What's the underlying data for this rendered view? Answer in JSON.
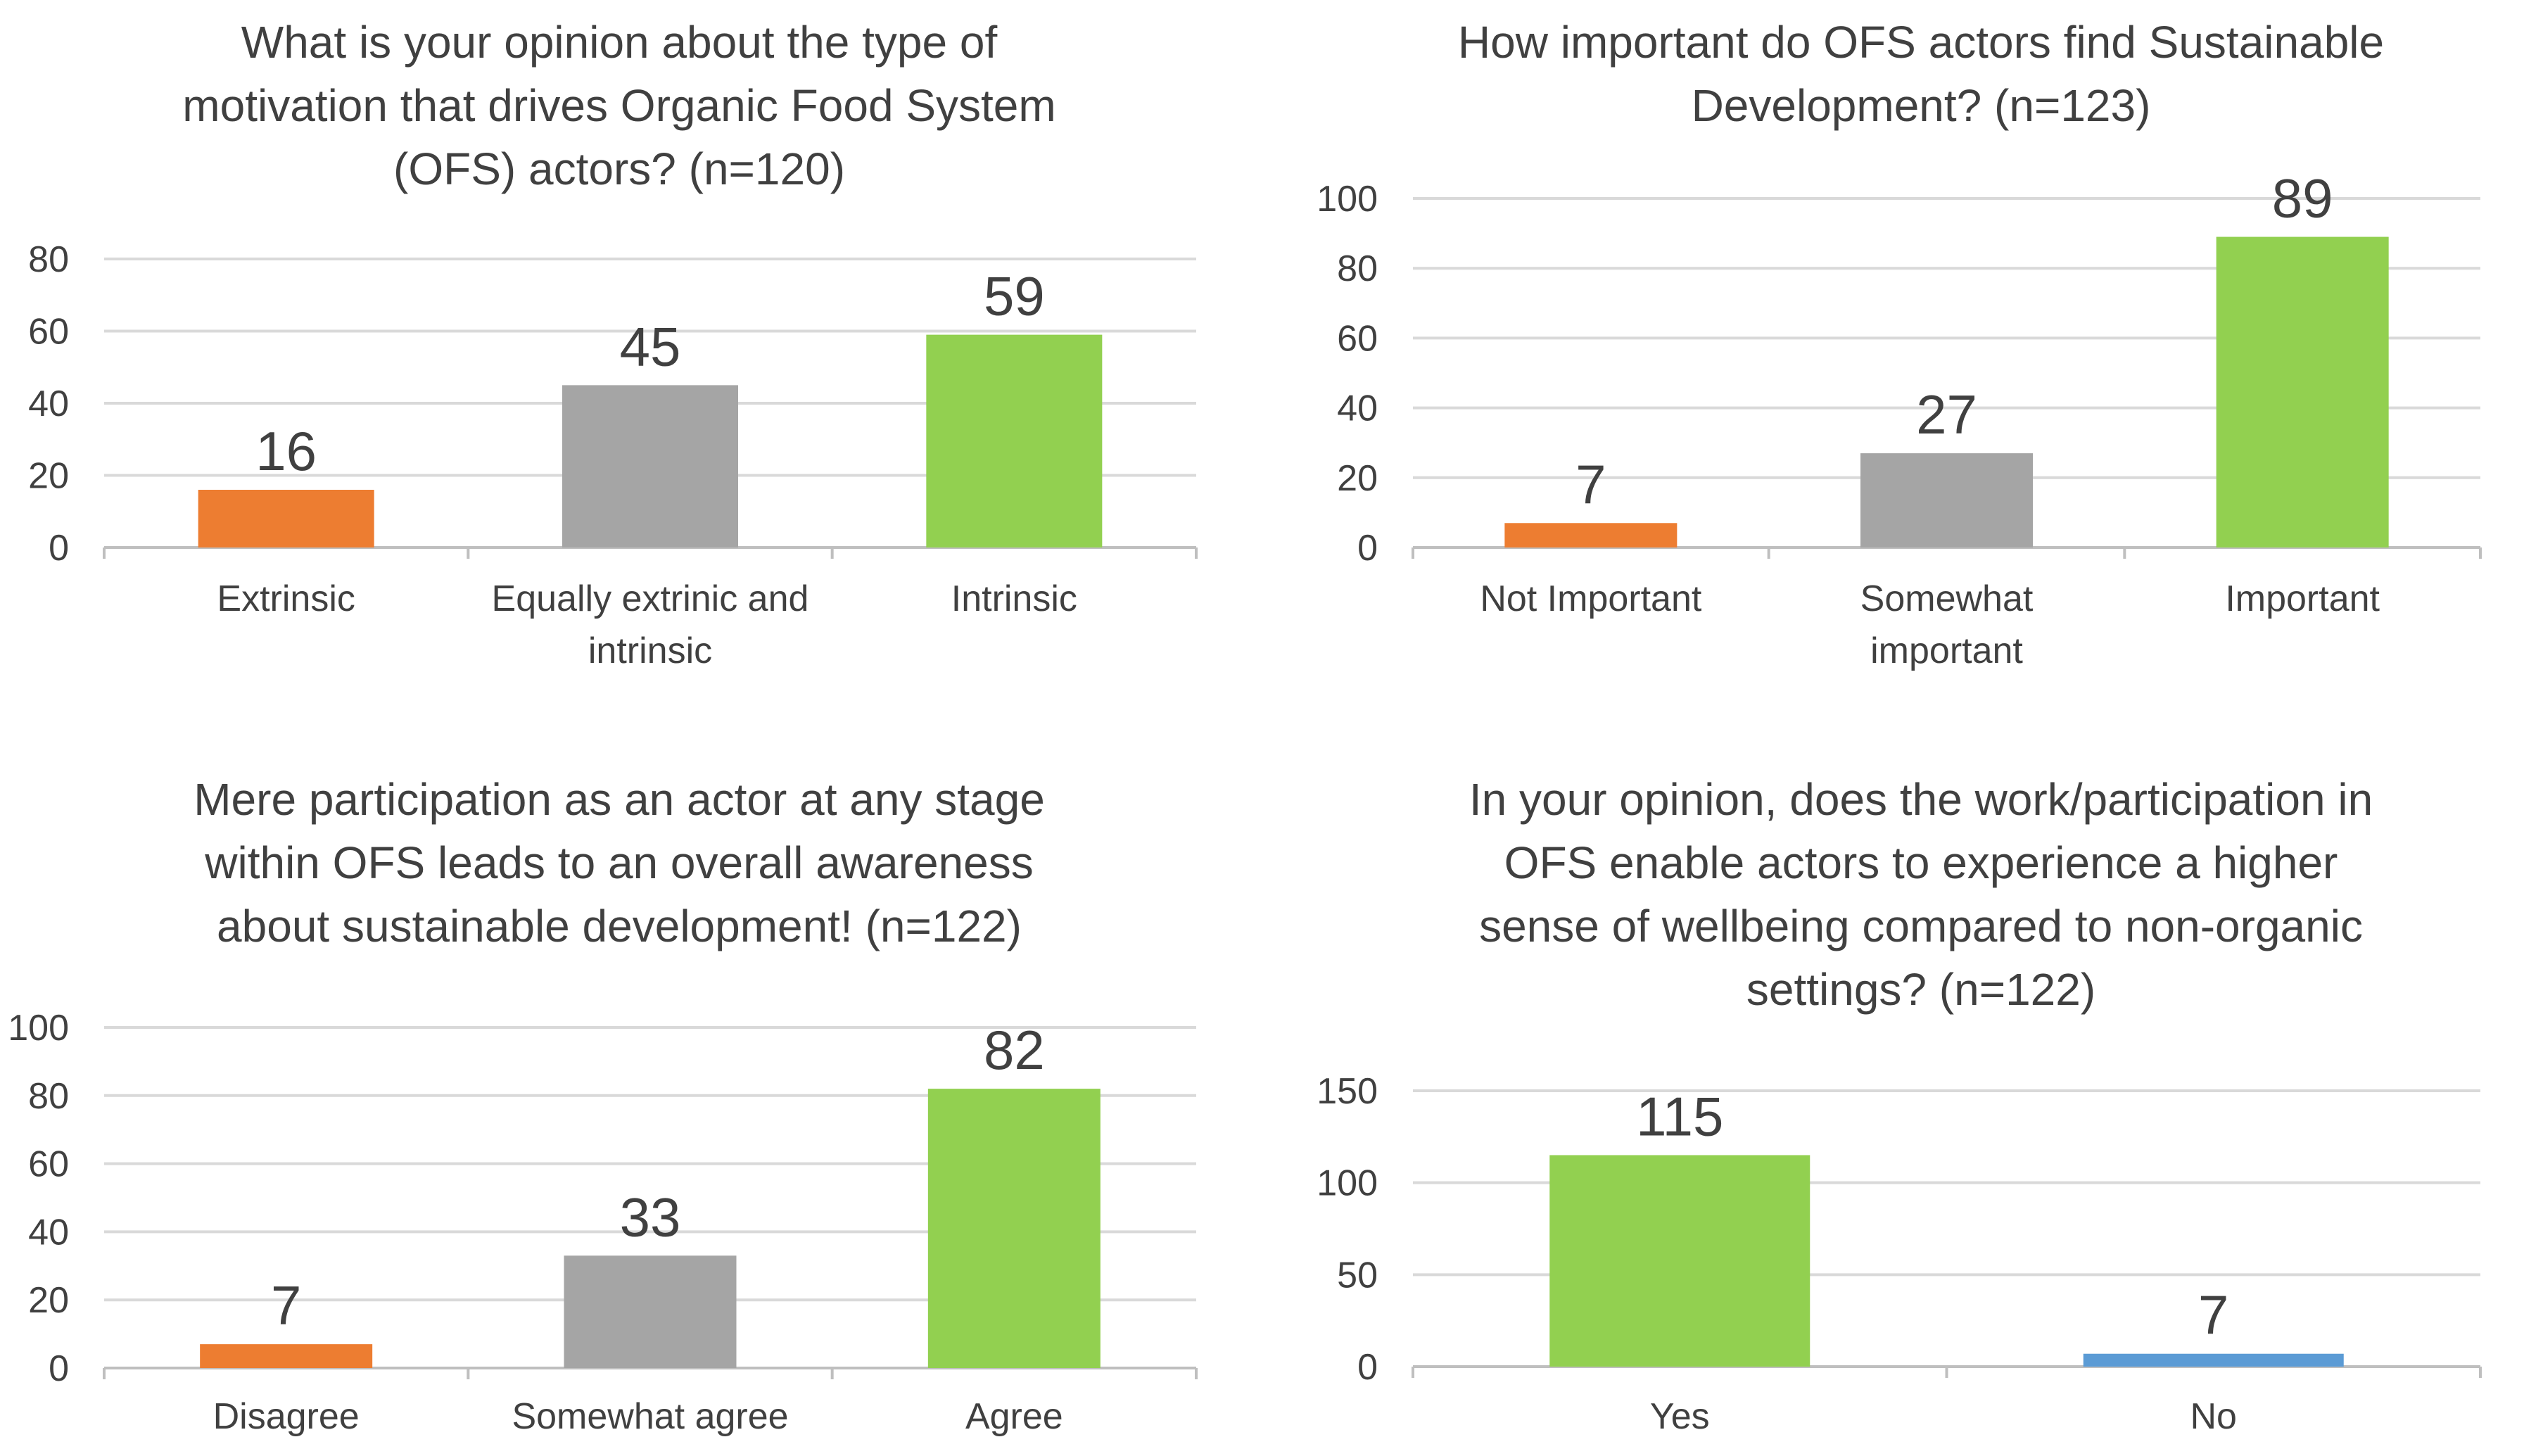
{
  "chart_data": [
    {
      "type": "bar",
      "title": [
        "What is your opinion about the type of",
        "motivation that drives Organic Food System",
        "(OFS) actors? (n=120)"
      ],
      "categories": [
        [
          "Extrinsic"
        ],
        [
          "Equally extrinic and",
          "intrinsic"
        ],
        [
          "Intrinsic"
        ]
      ],
      "values": [
        16,
        45,
        59
      ],
      "bar_colors": [
        "#ed7d31",
        "#a5a5a5",
        "#92d050"
      ],
      "ylim": [
        0,
        80
      ],
      "yticks": [
        0,
        20,
        40,
        60,
        80
      ],
      "grid": true
    },
    {
      "type": "bar",
      "title": [
        "How important do OFS actors find Sustainable",
        "Development? (n=123)"
      ],
      "categories": [
        [
          "Not Important"
        ],
        [
          "Somewhat",
          "important"
        ],
        [
          "Important"
        ]
      ],
      "values": [
        7,
        27,
        89
      ],
      "bar_colors": [
        "#ed7d31",
        "#a5a5a5",
        "#92d050"
      ],
      "ylim": [
        0,
        100
      ],
      "yticks": [
        0,
        20,
        40,
        60,
        80,
        100
      ],
      "grid": true
    },
    {
      "type": "bar",
      "title": [
        "Mere participation as an actor at any stage",
        "within OFS leads to an overall awareness",
        "about sustainable development!  (n=122)"
      ],
      "categories": [
        [
          "Disagree"
        ],
        [
          "Somewhat agree"
        ],
        [
          "Agree"
        ]
      ],
      "values": [
        7,
        33,
        82
      ],
      "bar_colors": [
        "#ed7d31",
        "#a5a5a5",
        "#92d050"
      ],
      "ylim": [
        0,
        100
      ],
      "yticks": [
        0,
        20,
        40,
        60,
        80,
        100
      ],
      "grid": true
    },
    {
      "type": "bar",
      "title": [
        "In your opinion, does the work/participation in",
        "OFS enable actors to experience a higher",
        "sense of wellbeing compared to non-organic",
        "settings? (n=122)"
      ],
      "categories": [
        [
          "Yes"
        ],
        [
          "No"
        ]
      ],
      "values": [
        115,
        7
      ],
      "bar_colors": [
        "#92d050",
        "#5b9bd5"
      ],
      "ylim": [
        0,
        150
      ],
      "yticks": [
        0,
        50,
        100,
        150
      ],
      "grid": true
    }
  ]
}
